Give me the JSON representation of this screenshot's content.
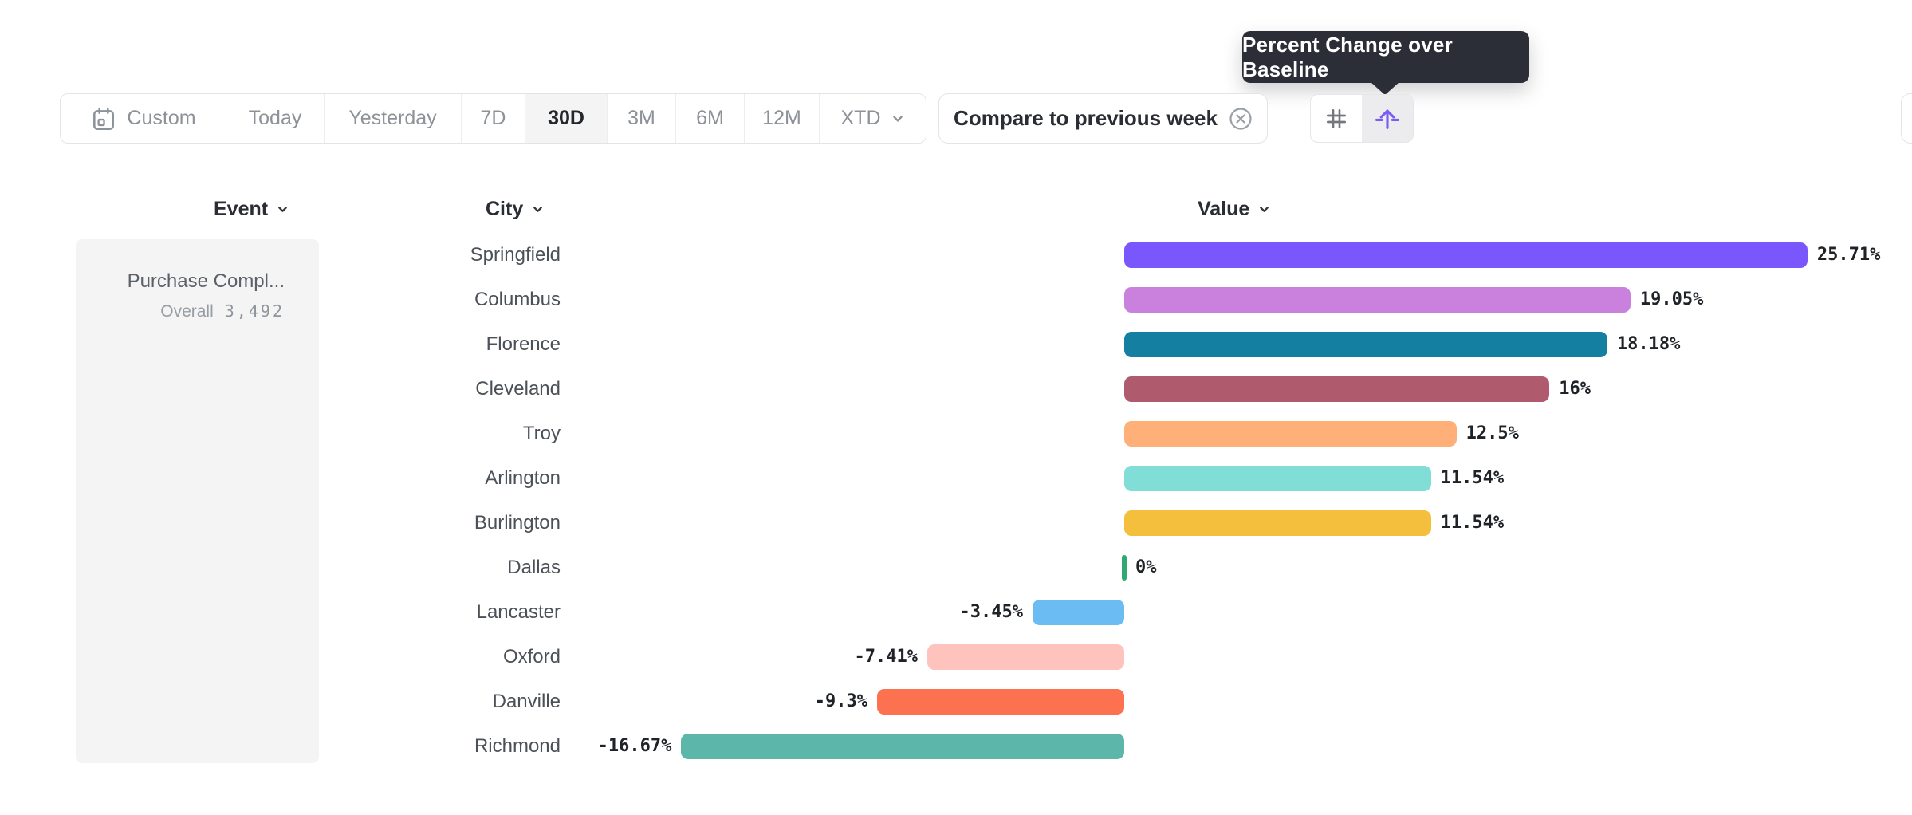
{
  "tooltip": {
    "text": "Percent Change over Baseline"
  },
  "toolbar": {
    "items": [
      {
        "label": "Custom",
        "icon": "calendar-icon",
        "selected": false
      },
      {
        "label": "Today",
        "selected": false
      },
      {
        "label": "Yesterday",
        "selected": false
      },
      {
        "label": "7D",
        "selected": false
      },
      {
        "label": "30D",
        "selected": true
      },
      {
        "label": "3M",
        "selected": false
      },
      {
        "label": "6M",
        "selected": false
      },
      {
        "label": "12M",
        "selected": false
      },
      {
        "label": "XTD",
        "chevron": true,
        "selected": false
      }
    ]
  },
  "compare_chip": {
    "label": "Compare to previous week",
    "icon": "circle-x-icon"
  },
  "view_toggle": {
    "options": [
      {
        "name": "number-grid-icon",
        "selected": false
      },
      {
        "name": "uplift-arrow-icon",
        "selected": true
      }
    ],
    "accent_color": "#7b5bf5"
  },
  "columns": {
    "event": "Event",
    "city": "City",
    "value": "Value"
  },
  "event_panel": {
    "title": "Purchase Compl...",
    "overall_label": "Overall",
    "overall_value": "3,492"
  },
  "chart_data": {
    "type": "bar",
    "orientation": "horizontal",
    "series_name": "Value",
    "unit": "%",
    "baseline": 0,
    "grid": false,
    "xlim": [
      -16.67,
      25.71
    ],
    "categories": [
      "Springfield",
      "Columbus",
      "Florence",
      "Cleveland",
      "Troy",
      "Arlington",
      "Burlington",
      "Dallas",
      "Lancaster",
      "Oxford",
      "Danville",
      "Richmond"
    ],
    "values": [
      25.71,
      19.05,
      18.18,
      16,
      12.5,
      11.54,
      11.54,
      0,
      -3.45,
      -7.41,
      -9.3,
      -16.67
    ],
    "value_labels": [
      "25.71%",
      "19.05%",
      "18.18%",
      "16%",
      "12.5%",
      "11.54%",
      "11.54%",
      "0%",
      "-3.45%",
      "-7.41%",
      "-9.3%",
      "-16.67%"
    ],
    "bar_colors": [
      "#7a56fd",
      "#c981dd",
      "#147fa0",
      "#b05a6e",
      "#ffb078",
      "#81ded7",
      "#f5bf3e",
      "#2fa874",
      "#6cbcf4",
      "#fdc3bc",
      "#fc7150",
      "#5cb6a9"
    ],
    "zero_tick_color": "#2fa874"
  }
}
